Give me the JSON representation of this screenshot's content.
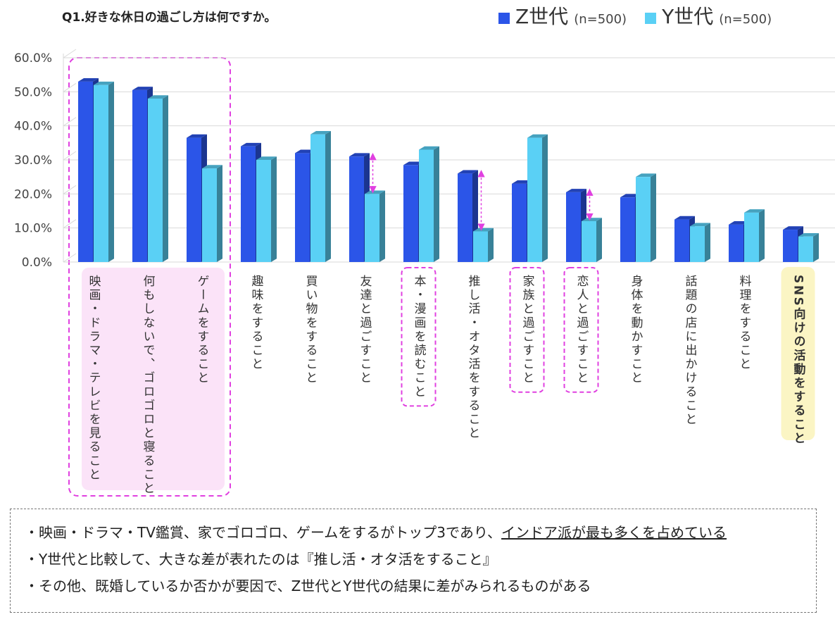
{
  "title": "Q1.好きな休日の過ごし方は何ですか。",
  "legend": [
    {
      "name": "Z世代",
      "n": "(n=500)",
      "color": "#2b55e8"
    },
    {
      "name": "Y世代",
      "n": "(n=500)",
      "color": "#5ad0f5"
    }
  ],
  "chart_data": {
    "type": "bar",
    "title": "Q1.好きな休日の過ごし方は何ですか。",
    "ylim": [
      0,
      60
    ],
    "y_ticks": [
      "0.0%",
      "10.0%",
      "20.0%",
      "30.0%",
      "40.0%",
      "50.0%",
      "60.0%"
    ],
    "grid": true,
    "legend_position": "top-right",
    "categories": [
      "映画・ドラマ・テレビを見ること",
      "何もしないで、ゴロゴロと寝ること",
      "ゲームをすること",
      "趣味をすること",
      "買い物をすること",
      "友達と過ごすこと",
      "本・漫画を読むこと",
      "推し活・オタ活をすること",
      "家族と過ごすこと",
      "恋人と過ごすこと",
      "身体を動かすこと",
      "話題の店に出かけること",
      "料理をすること",
      "SNS向けの活動をすること"
    ],
    "series": [
      {
        "name": "Z世代",
        "values": [
          53,
          50.5,
          36.5,
          34,
          32,
          31,
          28.5,
          26,
          23,
          20.5,
          19,
          12.5,
          11,
          9.5
        ]
      },
      {
        "name": "Y世代",
        "values": [
          52,
          48,
          27.5,
          30,
          37.5,
          20,
          33,
          9,
          36.5,
          12,
          25,
          10.5,
          14.5,
          7.5
        ]
      }
    ],
    "highlighted_categories": {
      "top3_box": [
        0,
        1,
        2
      ],
      "dashed_box": [
        6,
        8,
        9
      ],
      "yellow_box": [
        13
      ],
      "difference_arrows": [
        5,
        7,
        9
      ]
    }
  },
  "notes": [
    {
      "prefix": "・映画・ドラマ・TV鑑賞、家でゴロゴロ、ゲームをするがトップ3であり、",
      "underlined": "インドア派が最も多くを占めている"
    },
    {
      "prefix": "・Y世代と比較して、大きな差が表れたのは『推し活・オタ活をすること』",
      "underlined": ""
    },
    {
      "prefix": "・その他、既婚しているか否かが要因で、Z世代とY世代の結果に差がみられるものがある",
      "underlined": ""
    }
  ]
}
